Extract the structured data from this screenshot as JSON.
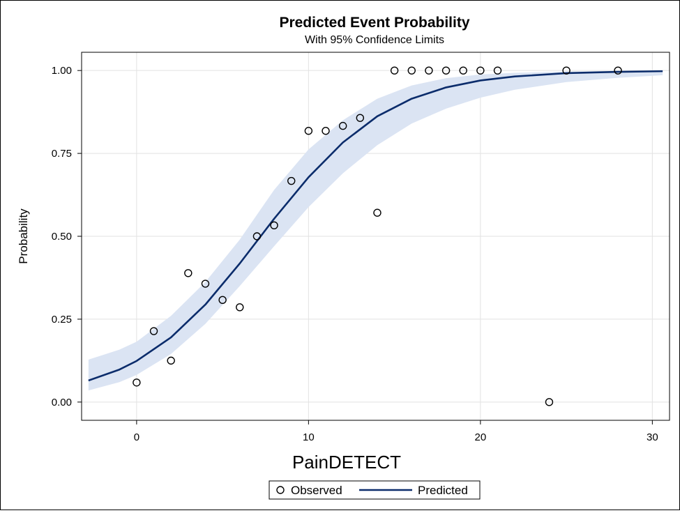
{
  "chart_data": {
    "type": "scatter",
    "title": "Predicted Event Probability",
    "subtitle": "With 95% Confidence Limits",
    "xlabel": "PainDETECT",
    "ylabel": "Probability",
    "xlim": [
      -3.2,
      31.0
    ],
    "ylim": [
      -0.055,
      1.055
    ],
    "x_ticks": [
      0,
      10,
      20,
      30
    ],
    "y_ticks": [
      0.0,
      0.25,
      0.5,
      0.75,
      1.0
    ],
    "x_tick_labels": [
      "0",
      "10",
      "20",
      "30"
    ],
    "y_tick_labels": [
      "0.00",
      "0.25",
      "0.50",
      "0.75",
      "1.00"
    ],
    "grid": true,
    "legend_position": "bottom-center",
    "colors": {
      "predicted_line": "#0b2c6b",
      "confidence_band": "#dbe4f3",
      "observed_marker": "#000000",
      "grid": "#e2e2e2"
    },
    "series": [
      {
        "name": "Observed",
        "kind": "scatter",
        "x": [
          0,
          1,
          2,
          3,
          4,
          5,
          6,
          7,
          8,
          9,
          10,
          11,
          12,
          13,
          14,
          15,
          16,
          17,
          18,
          19,
          20,
          21,
          24,
          25,
          28
        ],
        "y": [
          0.059,
          0.214,
          0.125,
          0.389,
          0.357,
          0.308,
          0.286,
          0.5,
          0.533,
          0.667,
          0.818,
          0.818,
          0.833,
          0.857,
          0.571,
          1.0,
          1.0,
          1.0,
          1.0,
          1.0,
          1.0,
          1.0,
          0.0,
          1.0,
          1.0
        ]
      },
      {
        "name": "Predicted",
        "kind": "line",
        "x": [
          -2.8,
          -1,
          0,
          2,
          4,
          6,
          8,
          10,
          12,
          14,
          16,
          18,
          20,
          22,
          25,
          28,
          30.6
        ],
        "y": [
          0.065,
          0.098,
          0.124,
          0.195,
          0.294,
          0.418,
          0.553,
          0.678,
          0.783,
          0.862,
          0.915,
          0.949,
          0.97,
          0.982,
          0.992,
          0.996,
          0.998
        ]
      },
      {
        "name": "95% Confidence Limits",
        "kind": "band",
        "x": [
          -2.8,
          -1,
          0,
          2,
          4,
          6,
          8,
          10,
          12,
          14,
          16,
          18,
          20,
          22,
          25,
          28,
          30.6
        ],
        "lower": [
          0.035,
          0.06,
          0.082,
          0.145,
          0.236,
          0.35,
          0.47,
          0.588,
          0.69,
          0.775,
          0.84,
          0.885,
          0.918,
          0.942,
          0.965,
          0.978,
          0.986
        ],
        "upper": [
          0.128,
          0.158,
          0.182,
          0.26,
          0.362,
          0.49,
          0.64,
          0.762,
          0.85,
          0.915,
          0.955,
          0.977,
          0.988,
          0.993,
          0.997,
          0.999,
          0.9995
        ]
      }
    ]
  },
  "legend": {
    "observed_label": "Observed",
    "predicted_label": "Predicted"
  }
}
